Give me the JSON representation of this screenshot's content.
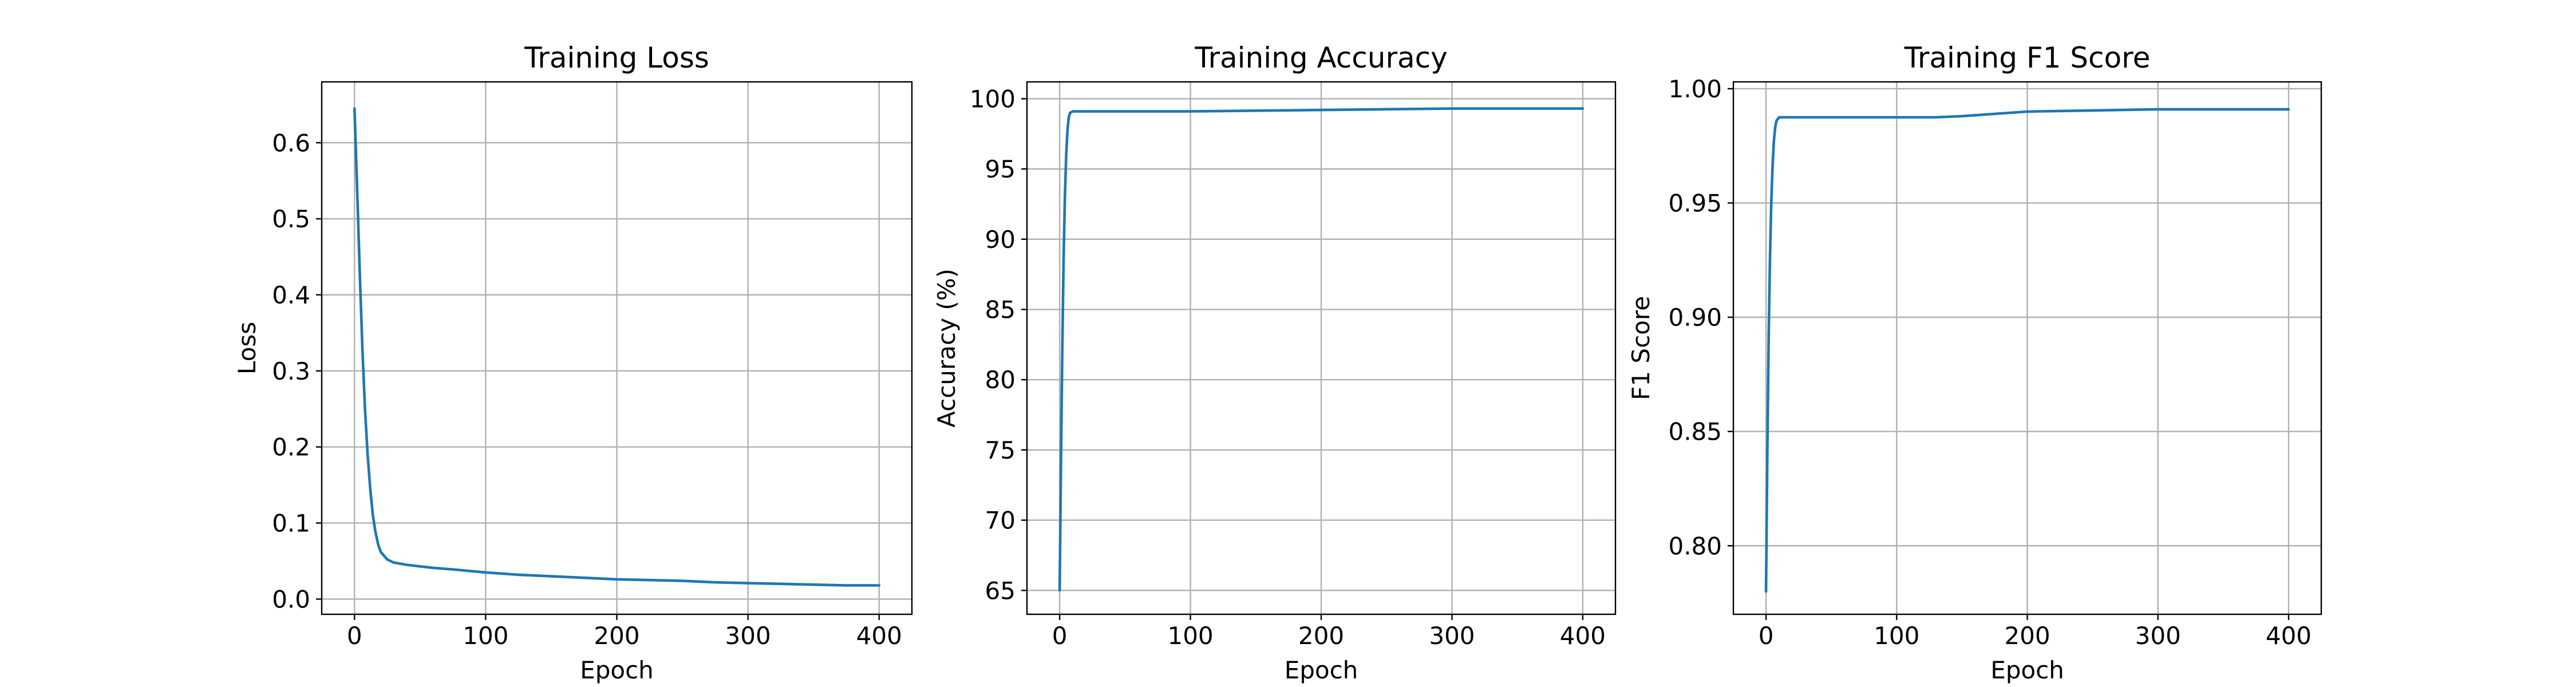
{
  "figure": {
    "background": "#ffffff"
  },
  "chart_data": [
    {
      "type": "line",
      "title": "Training Loss",
      "xlabel": "Epoch",
      "ylabel": "Loss",
      "xlim": [
        -25,
        425
      ],
      "ylim": [
        -0.02,
        0.68
      ],
      "xticks": [
        0,
        100,
        200,
        300,
        400
      ],
      "xtick_labels": [
        "0",
        "100",
        "200",
        "300",
        "400"
      ],
      "yticks": [
        0.0,
        0.1,
        0.2,
        0.3,
        0.4,
        0.5,
        0.6
      ],
      "ytick_labels": [
        "0.0",
        "0.1",
        "0.2",
        "0.3",
        "0.4",
        "0.5",
        "0.6"
      ],
      "grid": true,
      "series": [
        {
          "color": "#1f77b4",
          "x": [
            0,
            2,
            4,
            6,
            8,
            10,
            12,
            14,
            16,
            18,
            20,
            25,
            30,
            40,
            50,
            60,
            75,
            100,
            125,
            150,
            175,
            200,
            225,
            250,
            275,
            300,
            325,
            350,
            375,
            400
          ],
          "y": [
            0.645,
            0.54,
            0.43,
            0.33,
            0.25,
            0.19,
            0.145,
            0.11,
            0.088,
            0.072,
            0.062,
            0.052,
            0.048,
            0.045,
            0.043,
            0.041,
            0.039,
            0.035,
            0.032,
            0.03,
            0.028,
            0.026,
            0.025,
            0.024,
            0.022,
            0.021,
            0.02,
            0.019,
            0.018,
            0.018
          ]
        }
      ]
    },
    {
      "type": "line",
      "title": "Training Accuracy",
      "xlabel": "Epoch",
      "ylabel": "Accuracy (%)",
      "xlim": [
        -25,
        425
      ],
      "ylim": [
        63.3,
        101.2
      ],
      "xticks": [
        0,
        100,
        200,
        300,
        400
      ],
      "xtick_labels": [
        "0",
        "100",
        "200",
        "300",
        "400"
      ],
      "yticks": [
        65,
        70,
        75,
        80,
        85,
        90,
        95,
        100
      ],
      "ytick_labels": [
        "65",
        "70",
        "75",
        "80",
        "85",
        "90",
        "95",
        "100"
      ],
      "grid": true,
      "series": [
        {
          "color": "#1f77b4",
          "x": [
            0,
            1,
            2,
            3,
            4,
            5,
            6,
            7,
            8,
            10,
            15,
            50,
            100,
            150,
            200,
            250,
            300,
            350,
            400
          ],
          "y": [
            65.0,
            74.0,
            82.0,
            88.5,
            93.0,
            96.0,
            97.8,
            98.7,
            99.0,
            99.1,
            99.1,
            99.1,
            99.1,
            99.15,
            99.2,
            99.25,
            99.3,
            99.3,
            99.3
          ]
        }
      ]
    },
    {
      "type": "line",
      "title": "Training F1 Score",
      "xlabel": "Epoch",
      "ylabel": "F1 Score",
      "xlim": [
        -25,
        425
      ],
      "ylim": [
        0.77,
        1.003
      ],
      "xticks": [
        0,
        100,
        200,
        300,
        400
      ],
      "xtick_labels": [
        "0",
        "100",
        "200",
        "300",
        "400"
      ],
      "yticks": [
        0.8,
        0.85,
        0.9,
        0.95,
        1.0
      ],
      "ytick_labels": [
        "0.80",
        "0.85",
        "0.90",
        "0.95",
        "1.00"
      ],
      "grid": true,
      "series": [
        {
          "color": "#1f77b4",
          "x": [
            0,
            1,
            2,
            3,
            4,
            5,
            6,
            7,
            8,
            10,
            15,
            50,
            100,
            130,
            150,
            175,
            200,
            250,
            300,
            350,
            400
          ],
          "y": [
            0.78,
            0.84,
            0.89,
            0.925,
            0.95,
            0.966,
            0.977,
            0.983,
            0.986,
            0.9875,
            0.9875,
            0.9875,
            0.9875,
            0.9875,
            0.988,
            0.989,
            0.99,
            0.9905,
            0.991,
            0.991,
            0.991
          ]
        }
      ]
    }
  ]
}
